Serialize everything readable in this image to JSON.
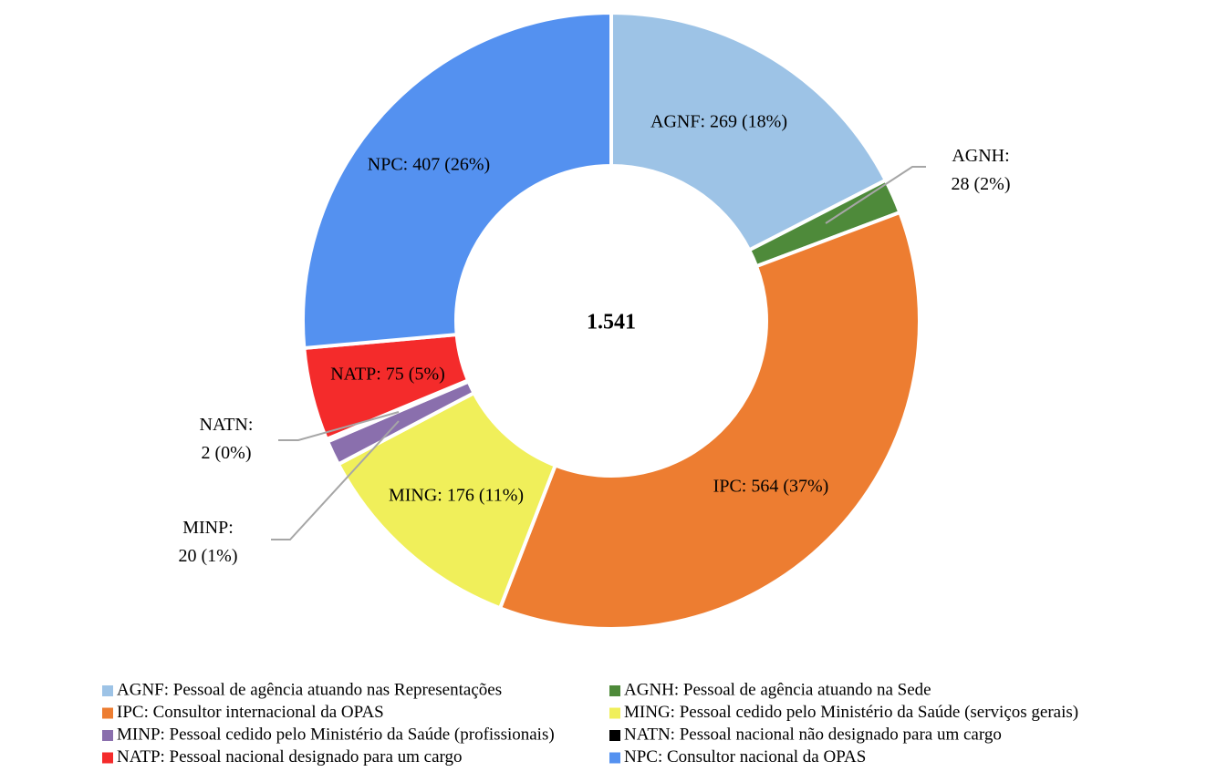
{
  "chart_data": {
    "type": "pie",
    "donut": true,
    "center_label": "1.541",
    "categories": [
      "AGNF: Pessoal de agência atuando nas Representações",
      "AGNH: Pessoal de agência atuando na Sede",
      "IPC: Consultor internacional da OPAS",
      "MING: Pessoal cedido pelo Ministério da Saúde (serviços gerais)",
      "MINP: Pessoal cedido pelo Ministério da Saúde (profissionais)",
      "NATN: Pessoal nacional não designado para um cargo",
      "NATP: Pessoal nacional designado para um cargo",
      "NPC: Consultor nacional da OPAS"
    ],
    "values": [
      269,
      28,
      564,
      176,
      20,
      2,
      75,
      407
    ],
    "value_labels": [
      "AGNF: 269 (18%)",
      "AGNH: 28 (2%)",
      "IPC: 564 (37%)",
      "MING: 176 (11%)",
      "MINP: 20 (1%)",
      "NATN: 2 (0%)",
      "NATP: 75 (5%)",
      "NPC: 407 (26%)"
    ],
    "colors": [
      "#9dc3e6",
      "#4e8a3a",
      "#ed7d31",
      "#f0ef5a",
      "#8a6fad",
      "#000000",
      "#f42b2b",
      "#5491f0"
    ],
    "legend": "bottom"
  }
}
